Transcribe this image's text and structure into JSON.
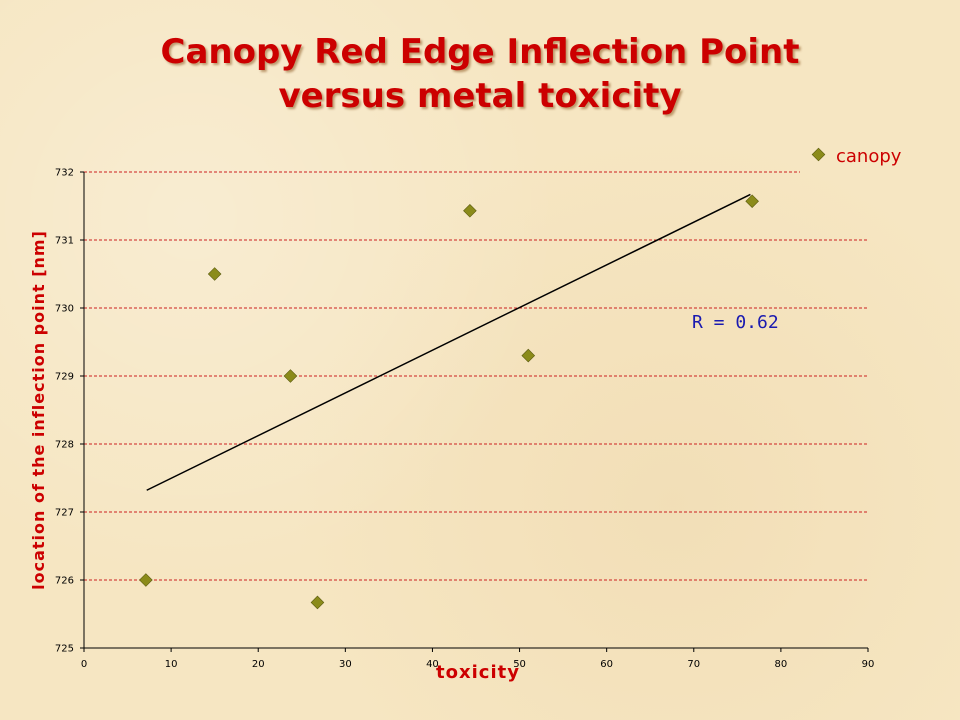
{
  "title_line1": "Canopy Red Edge Inflection Point",
  "title_line2": "versus metal toxicity",
  "chart_data": {
    "type": "scatter",
    "xlabel": "toxicity",
    "ylabel": "location of the inflection point [nm]",
    "xlim": [
      0,
      90
    ],
    "ylim": [
      725,
      732
    ],
    "x_ticks": [
      "0",
      "10",
      "20",
      "30",
      "40",
      "50",
      "60",
      "70",
      "80",
      "90"
    ],
    "y_ticks": [
      "725",
      "726",
      "727",
      "728",
      "729",
      "730",
      "731",
      "732"
    ],
    "grid": "horizontal dashed red",
    "legend_position": "top-right",
    "series": [
      {
        "name": "canopy",
        "color": "#8b8b1a",
        "marker": "diamond",
        "x": [
          7.1,
          15.0,
          23.7,
          26.8,
          44.3,
          51.0,
          76.7
        ],
        "y": [
          726.0,
          730.5,
          729.0,
          725.67,
          731.43,
          729.3,
          731.57
        ]
      }
    ],
    "trendline": {
      "x": [
        7.2,
        76.5
      ],
      "y": [
        727.32,
        731.67
      ],
      "color": "#000000"
    },
    "annotation": "R = 0.62"
  }
}
